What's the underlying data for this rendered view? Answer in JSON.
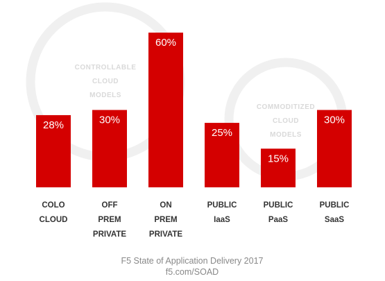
{
  "chart_data": {
    "type": "bar",
    "categories": [
      [
        "COLO",
        "CLOUD"
      ],
      [
        "OFF",
        "PREM",
        "PRIVATE"
      ],
      [
        "ON",
        "PREM",
        "PRIVATE"
      ],
      [
        "PUBLIC",
        "IaaS"
      ],
      [
        "PUBLIC",
        "PaaS"
      ],
      [
        "PUBLIC",
        "SaaS"
      ]
    ],
    "values": [
      28,
      30,
      60,
      25,
      15,
      30
    ],
    "value_labels": [
      "28%",
      "30%",
      "60%",
      "25%",
      "15%",
      "30%"
    ],
    "title": "",
    "xlabel": "",
    "ylabel": "",
    "ylim": [
      0,
      60
    ],
    "grid": false,
    "bar_color": "#d40000",
    "annotations": [
      {
        "lines": [
          "CONTROLLABLE",
          "CLOUD",
          "MODELS"
        ]
      },
      {
        "lines": [
          "COMMODITIZED",
          "CLOUD",
          "MODELS"
        ]
      }
    ]
  },
  "footer": {
    "line1": "F5 State of Application Delivery 2017",
    "line2": "f5.com/SOAD"
  }
}
